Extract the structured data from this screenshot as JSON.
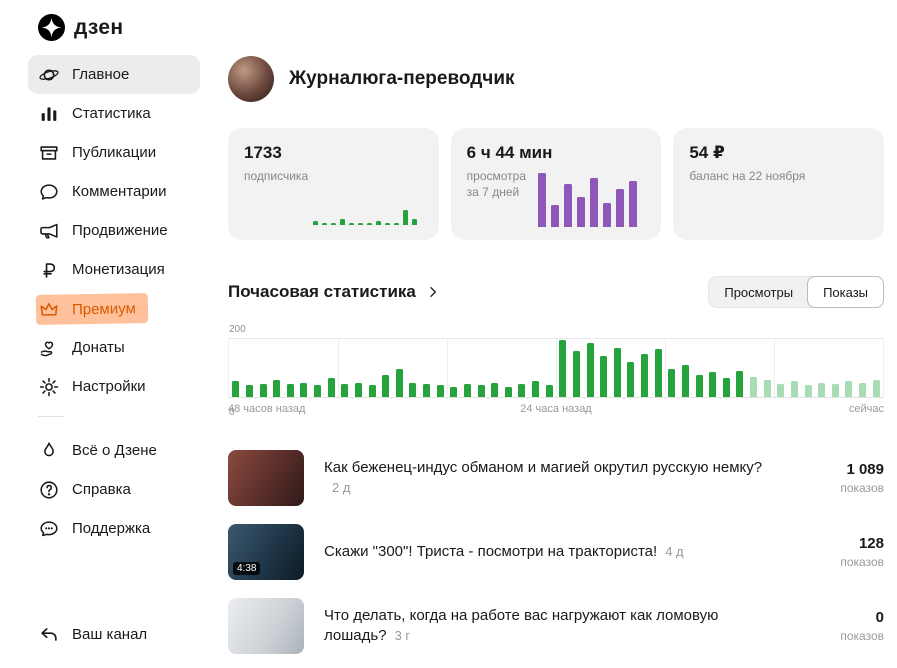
{
  "app": {
    "name": "дзен"
  },
  "sidebar": {
    "items": [
      {
        "id": "main",
        "label": "Главное",
        "icon": "planet-icon",
        "active": true
      },
      {
        "id": "statistics",
        "label": "Статистика",
        "icon": "bar-chart-icon"
      },
      {
        "id": "publications",
        "label": "Публикации",
        "icon": "archive-icon"
      },
      {
        "id": "comments",
        "label": "Комментарии",
        "icon": "comment-icon"
      },
      {
        "id": "promotion",
        "label": "Продвижение",
        "icon": "megaphone-icon"
      },
      {
        "id": "monetization",
        "label": "Монетизация",
        "icon": "ruble-icon"
      },
      {
        "id": "premium",
        "label": "Премиум",
        "icon": "crown-icon",
        "highlighted": true
      },
      {
        "id": "donations",
        "label": "Донаты",
        "icon": "donate-icon"
      },
      {
        "id": "settings",
        "label": "Настройки",
        "icon": "gear-icon"
      }
    ],
    "secondary_items": [
      {
        "id": "about",
        "label": "Всё о Дзене",
        "icon": "flame-icon"
      },
      {
        "id": "help",
        "label": "Справка",
        "icon": "question-icon"
      },
      {
        "id": "support",
        "label": "Поддержка",
        "icon": "support-icon"
      }
    ],
    "footer_item": {
      "id": "your-channel",
      "label": "Ваш канал",
      "icon": "back-arrow-icon"
    }
  },
  "header": {
    "channel_name": "Журналюга-переводчик"
  },
  "stat_cards": [
    {
      "value": "1733",
      "label": "подписчика"
    },
    {
      "value": "6 ч 44 мин",
      "label": "просмотра",
      "sublabel": "за 7 дней"
    },
    {
      "value": "54 ₽",
      "label": "баланс на 22 ноября"
    }
  ],
  "hourly_section": {
    "title": "Почасовая статистика",
    "toggle": [
      {
        "label": "Просмотры",
        "active": false
      },
      {
        "label": "Показы",
        "active": true
      }
    ]
  },
  "chart_data": [
    {
      "id": "hourly_stats",
      "type": "bar",
      "title": "Почасовая статистика",
      "metric": "Показы",
      "ylim": [
        0,
        200
      ],
      "y_axis_labels": [
        "0",
        "200"
      ],
      "x_axis_labels": [
        "48 часов назад",
        "24 часа назад",
        "сейчас"
      ],
      "grid_sections": 6,
      "values": [
        55,
        40,
        45,
        60,
        45,
        50,
        40,
        65,
        45,
        50,
        40,
        75,
        95,
        50,
        45,
        40,
        35,
        45,
        40,
        50,
        35,
        45,
        55,
        40,
        195,
        160,
        185,
        140,
        170,
        120,
        150,
        165,
        95,
        110,
        75,
        85,
        65,
        90,
        70,
        60,
        45,
        55,
        40,
        50,
        45,
        55,
        50,
        60
      ],
      "faded_from_index": 38,
      "bar_color": "#26A33C",
      "faded_bar_color": "#A9DCB2"
    },
    {
      "id": "subscribers_sparkline",
      "type": "bar",
      "values": [
        3,
        2,
        2,
        5,
        2,
        2,
        2,
        3,
        2,
        2,
        12,
        5
      ],
      "bar_color": "#26A33C"
    },
    {
      "id": "views_sparkline",
      "type": "bar",
      "values": [
        100,
        40,
        80,
        55,
        90,
        45,
        70,
        85
      ],
      "bar_color": "#8E57B8"
    }
  ],
  "publications": [
    {
      "title": "Как беженец-индус обманом и магией окрутил русскую немку?",
      "age": "2 д",
      "count": "1 089",
      "count_label": "показов",
      "thumb": "couple"
    },
    {
      "title": "Скажи \"300\"! Триста - посмотри на тракториста!",
      "age": "4 д",
      "count": "128",
      "count_label": "показов",
      "thumb": "tractor",
      "duration": "4:38"
    },
    {
      "title": "Что делать, когда на работе вас нагружают как ломовую лошадь?",
      "age": "3 г",
      "count": "0",
      "count_label": "показов",
      "thumb": "office"
    }
  ],
  "colors": {
    "green": "#26A33C",
    "green_faded": "#A9DCB2",
    "purple": "#8E57B8",
    "premium_text": "#D95B00",
    "premium_highlight": "#FFC09C",
    "card_bg": "#F2F2F2",
    "active_item_bg": "#ECECEC"
  }
}
